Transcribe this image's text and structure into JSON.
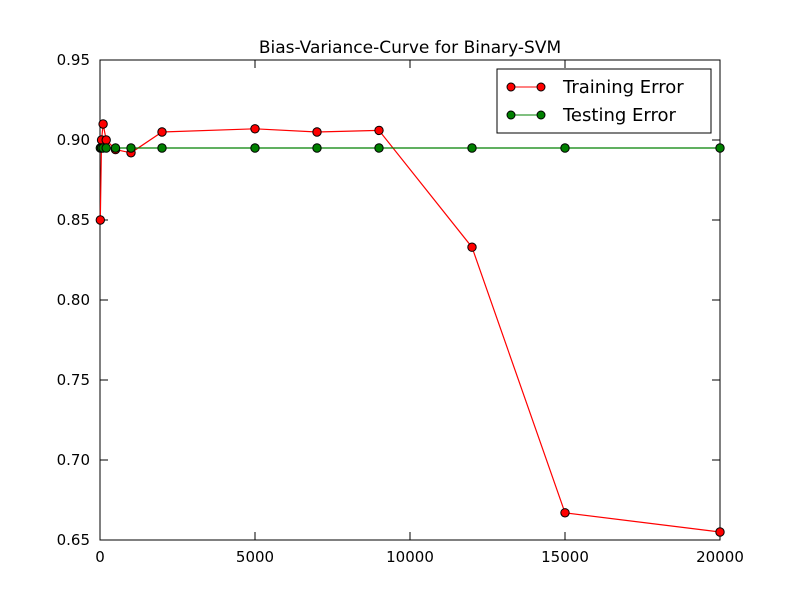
{
  "chart_data": {
    "type": "line",
    "title": "Bias-Variance-Curve for Binary-SVM",
    "xlabel": "",
    "ylabel": "",
    "xlim": [
      0,
      20000
    ],
    "ylim": [
      0.65,
      0.95
    ],
    "x_ticks": [
      0,
      5000,
      10000,
      15000,
      20000
    ],
    "x_tick_labels": [
      "0",
      "5000",
      "10000",
      "15000",
      "20000"
    ],
    "y_ticks": [
      0.65,
      0.7,
      0.75,
      0.8,
      0.85,
      0.9,
      0.95
    ],
    "y_tick_labels": [
      "0.65",
      "0.70",
      "0.75",
      "0.80",
      "0.85",
      "0.90",
      "0.95"
    ],
    "grid": false,
    "legend_position": "top-right",
    "series": [
      {
        "name": "Training Error",
        "color": "#ff0000",
        "marker": "circle",
        "points": [
          [
            10,
            0.85
          ],
          [
            50,
            0.9
          ],
          [
            100,
            0.91
          ],
          [
            200,
            0.9
          ],
          [
            500,
            0.894
          ],
          [
            1000,
            0.892
          ],
          [
            2000,
            0.905
          ],
          [
            5000,
            0.907
          ],
          [
            7000,
            0.905
          ],
          [
            9000,
            0.906
          ],
          [
            12000,
            0.833
          ],
          [
            15000,
            0.667
          ],
          [
            20000,
            0.655
          ]
        ]
      },
      {
        "name": "Testing Error",
        "color": "#008000",
        "marker": "circle",
        "points": [
          [
            10,
            0.895
          ],
          [
            50,
            0.895
          ],
          [
            100,
            0.895
          ],
          [
            200,
            0.895
          ],
          [
            500,
            0.895
          ],
          [
            1000,
            0.895
          ],
          [
            2000,
            0.895
          ],
          [
            5000,
            0.895
          ],
          [
            7000,
            0.895
          ],
          [
            9000,
            0.895
          ],
          [
            12000,
            0.895
          ],
          [
            15000,
            0.895
          ],
          [
            20000,
            0.895
          ]
        ]
      }
    ]
  }
}
